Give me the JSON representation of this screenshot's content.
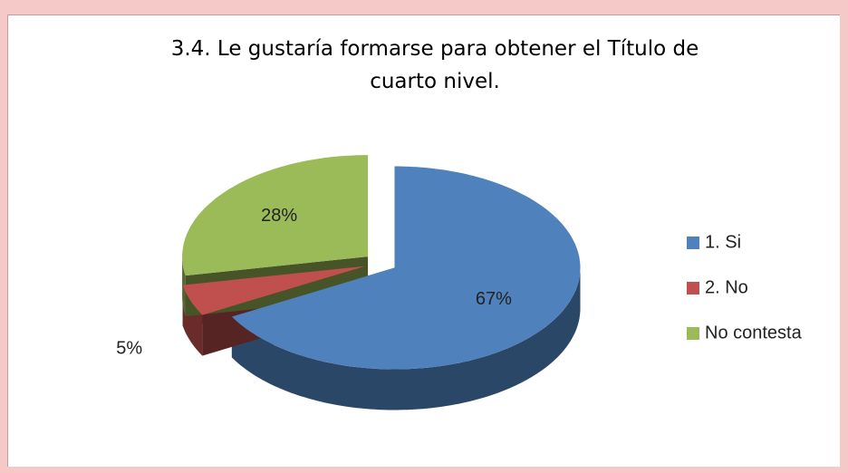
{
  "chart_data": {
    "type": "pie3d",
    "title": "3.4. Le gustaría formarse para obtener el Título de cuarto nivel.",
    "categories": [
      "1. Si",
      "2. No",
      "No contesta"
    ],
    "values": [
      67,
      5,
      28
    ],
    "value_labels": [
      "67%",
      "5%",
      "28%"
    ],
    "colors": [
      "#4f81bd",
      "#c0504d",
      "#9bbb59"
    ],
    "legend": "right"
  }
}
